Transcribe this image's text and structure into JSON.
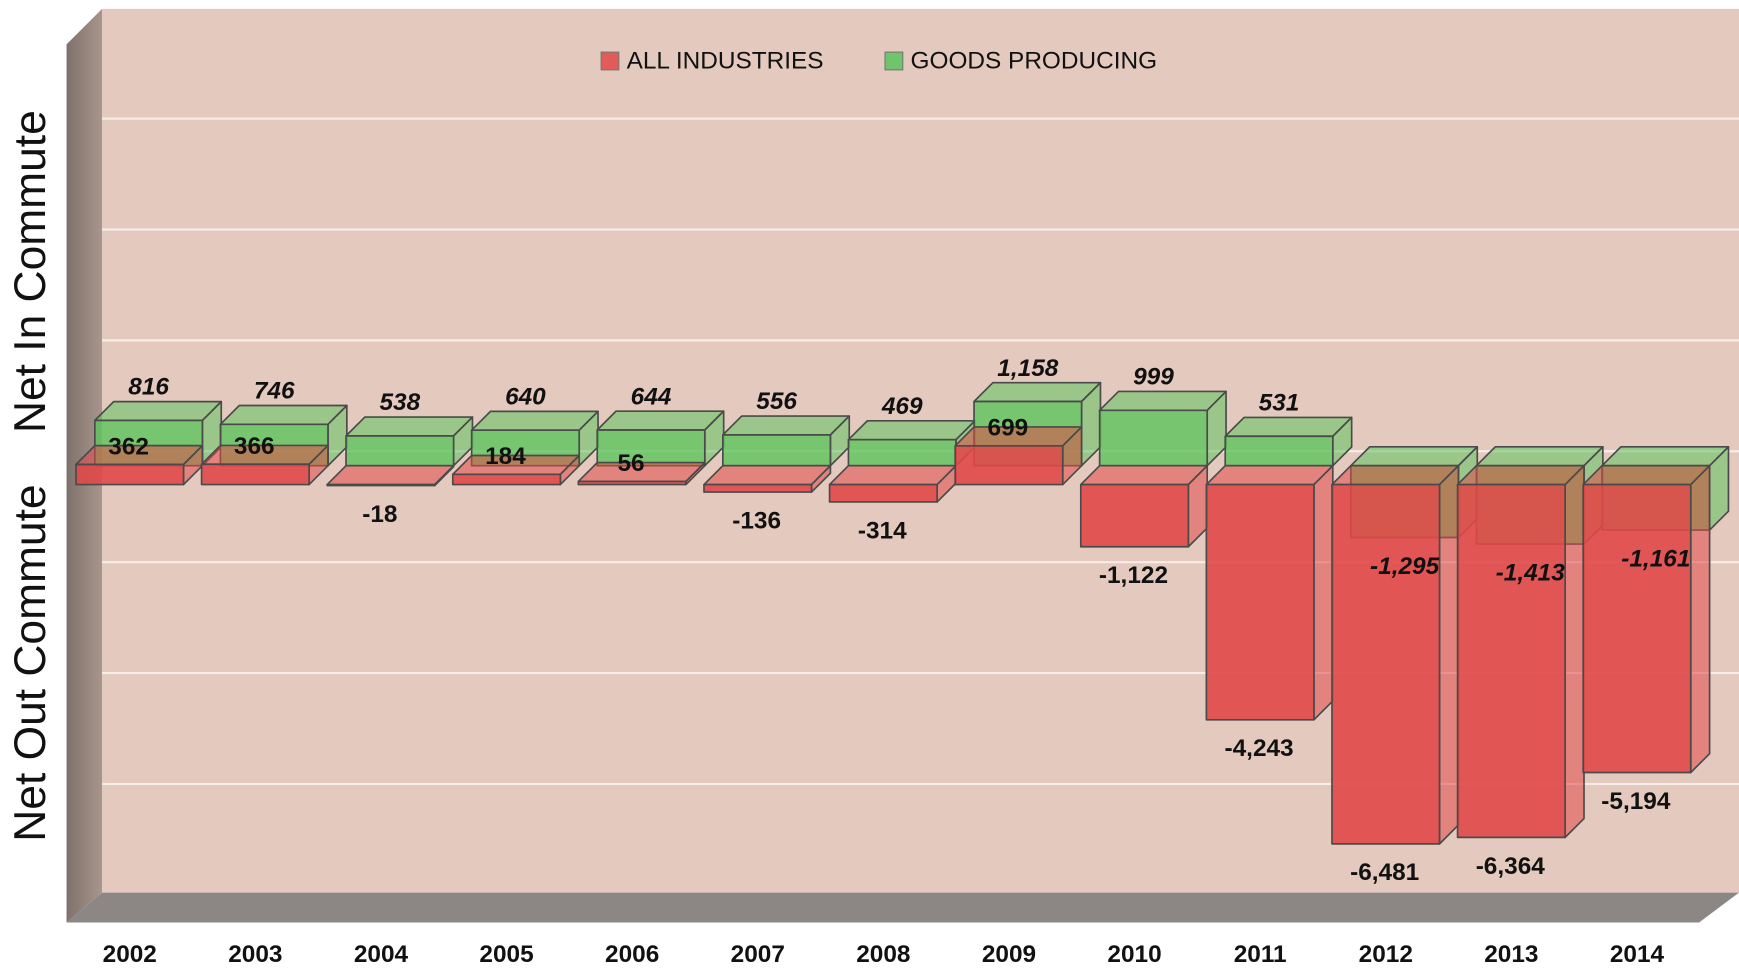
{
  "chart_data": {
    "type": "bar3d",
    "y_axis_labels": [
      "Net In Commute",
      "Net Out Commute"
    ],
    "categories": [
      "2002",
      "2003",
      "2004",
      "2005",
      "2006",
      "2007",
      "2008",
      "2009",
      "2010",
      "2011",
      "2012",
      "2013",
      "2014"
    ],
    "series": [
      {
        "name": "ALL INDUSTRIES",
        "color": "#e04848",
        "values": [
          362,
          366,
          -18,
          184,
          56,
          -136,
          -314,
          699,
          -1122,
          -4243,
          -6481,
          -6364,
          -5194
        ],
        "value_labels": [
          "362",
          "366",
          "-18",
          "184",
          "56",
          "-136",
          "-314",
          "699",
          "-1,122",
          "-4,243",
          "-6,481",
          "-6,364",
          "-5,194"
        ]
      },
      {
        "name": "GOODS PRODUCING",
        "color": "#5cc45c",
        "values": [
          816,
          746,
          538,
          640,
          644,
          556,
          469,
          1158,
          999,
          531,
          -1295,
          -1413,
          -1161
        ],
        "value_labels": [
          "816",
          "746",
          "538",
          "640",
          "644",
          "556",
          "469",
          "1,158",
          "999",
          "531",
          "-1,295",
          "-1,413",
          "-1,161"
        ]
      }
    ],
    "ylim": [
      -8000,
      8000
    ],
    "yticks": [
      -8000,
      -6000,
      -4000,
      -2000,
      0,
      2000,
      4000,
      6000,
      8000
    ],
    "grid": true
  }
}
